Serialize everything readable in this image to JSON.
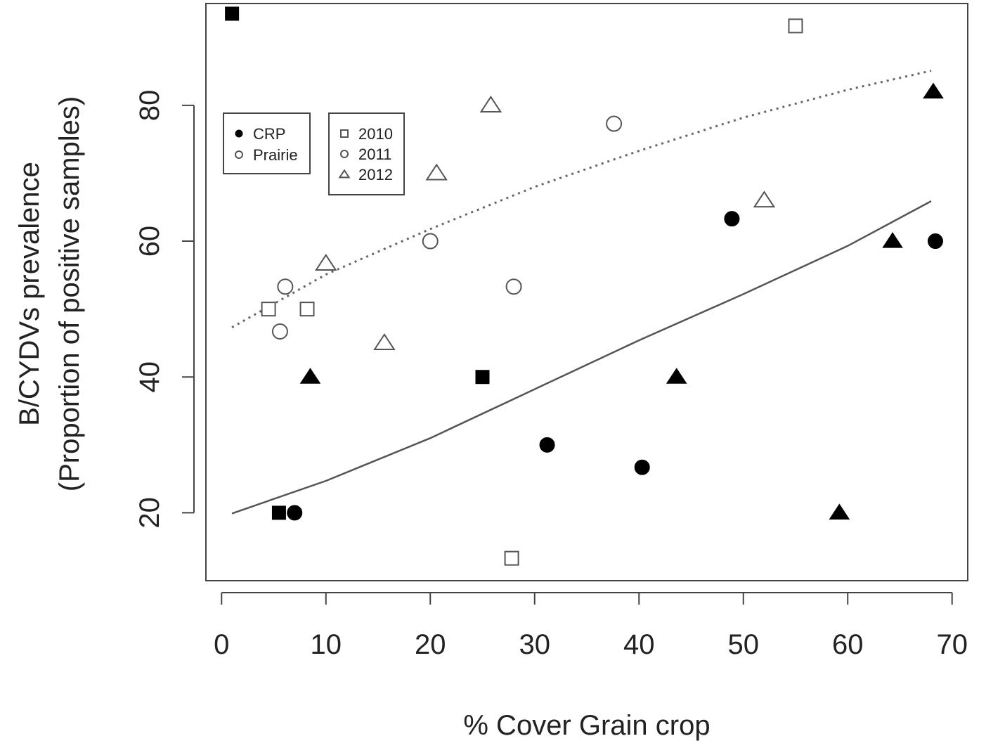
{
  "chart_data": {
    "type": "scatter",
    "xlabel": "% Cover Grain crop",
    "ylabel_line1": "B/CYDVs prevalence",
    "ylabel_line2": "(Proportion of positive samples)",
    "xlim": [
      -1.5,
      71.5
    ],
    "ylim": [
      10,
      95
    ],
    "x_ticks": [
      0,
      10,
      20,
      30,
      40,
      50,
      60,
      70
    ],
    "y_ticks": [
      20,
      40,
      60,
      80
    ],
    "x_tick_labels": [
      "0",
      "10",
      "20",
      "30",
      "40",
      "50",
      "60",
      "70"
    ],
    "y_tick_labels": [
      "20",
      "40",
      "60",
      "80"
    ],
    "grid": false,
    "legends": [
      {
        "placement": "top-left",
        "entries": [
          {
            "label": "CRP",
            "shape": "circle",
            "filled": true
          },
          {
            "label": "Prairie",
            "shape": "circle",
            "filled": false
          }
        ]
      },
      {
        "placement": "top-left",
        "entries": [
          {
            "label": "2010",
            "shape": "square",
            "filled": false
          },
          {
            "label": "2011",
            "shape": "circle",
            "filled": false
          },
          {
            "label": "2012",
            "shape": "triangle",
            "filled": false
          }
        ]
      }
    ],
    "points": [
      {
        "x": 1.0,
        "y": 93.5,
        "habitat": "CRP",
        "year": "2010"
      },
      {
        "x": 5.5,
        "y": 20.0,
        "habitat": "CRP",
        "year": "2010"
      },
      {
        "x": 25.0,
        "y": 40.0,
        "habitat": "CRP",
        "year": "2010"
      },
      {
        "x": 7.0,
        "y": 20.0,
        "habitat": "CRP",
        "year": "2011"
      },
      {
        "x": 31.2,
        "y": 30.0,
        "habitat": "CRP",
        "year": "2011"
      },
      {
        "x": 40.3,
        "y": 26.7,
        "habitat": "CRP",
        "year": "2011"
      },
      {
        "x": 48.9,
        "y": 63.3,
        "habitat": "CRP",
        "year": "2011"
      },
      {
        "x": 68.4,
        "y": 60.0,
        "habitat": "CRP",
        "year": "2011"
      },
      {
        "x": 8.5,
        "y": 40.0,
        "habitat": "CRP",
        "year": "2012"
      },
      {
        "x": 43.6,
        "y": 40.0,
        "habitat": "CRP",
        "year": "2012"
      },
      {
        "x": 59.2,
        "y": 20.0,
        "habitat": "CRP",
        "year": "2012"
      },
      {
        "x": 64.3,
        "y": 60.0,
        "habitat": "CRP",
        "year": "2012"
      },
      {
        "x": 68.2,
        "y": 82.0,
        "habitat": "CRP",
        "year": "2012"
      },
      {
        "x": 4.5,
        "y": 50.0,
        "habitat": "Prairie",
        "year": "2010"
      },
      {
        "x": 8.2,
        "y": 50.0,
        "habitat": "Prairie",
        "year": "2010"
      },
      {
        "x": 27.8,
        "y": 13.3,
        "habitat": "Prairie",
        "year": "2010"
      },
      {
        "x": 55.0,
        "y": 91.7,
        "habitat": "Prairie",
        "year": "2010"
      },
      {
        "x": 5.6,
        "y": 46.7,
        "habitat": "Prairie",
        "year": "2011"
      },
      {
        "x": 6.1,
        "y": 53.3,
        "habitat": "Prairie",
        "year": "2011"
      },
      {
        "x": 20.0,
        "y": 60.0,
        "habitat": "Prairie",
        "year": "2011"
      },
      {
        "x": 28.0,
        "y": 53.3,
        "habitat": "Prairie",
        "year": "2011"
      },
      {
        "x": 37.6,
        "y": 77.3,
        "habitat": "Prairie",
        "year": "2011"
      },
      {
        "x": 10.0,
        "y": 56.7,
        "habitat": "Prairie",
        "year": "2012"
      },
      {
        "x": 15.6,
        "y": 45.0,
        "habitat": "Prairie",
        "year": "2012"
      },
      {
        "x": 20.6,
        "y": 70.0,
        "habitat": "Prairie",
        "year": "2012"
      },
      {
        "x": 25.8,
        "y": 80.0,
        "habitat": "Prairie",
        "year": "2012"
      },
      {
        "x": 52.0,
        "y": 66.0,
        "habitat": "Prairie",
        "year": "2012"
      }
    ],
    "fit_lines": [
      {
        "habitat": "CRP",
        "style": "solid",
        "x": [
          1,
          10,
          20,
          30,
          40,
          50,
          60,
          68
        ],
        "y": [
          19.9,
          24.7,
          31.0,
          38.2,
          45.4,
          52.2,
          59.3,
          65.9
        ]
      },
      {
        "habitat": "Prairie",
        "style": "dotted",
        "x": [
          1,
          10,
          20,
          30,
          40,
          50,
          60,
          68
        ],
        "y": [
          47.3,
          55.1,
          61.8,
          68.0,
          73.3,
          78.2,
          82.3,
          85.1
        ]
      }
    ]
  }
}
